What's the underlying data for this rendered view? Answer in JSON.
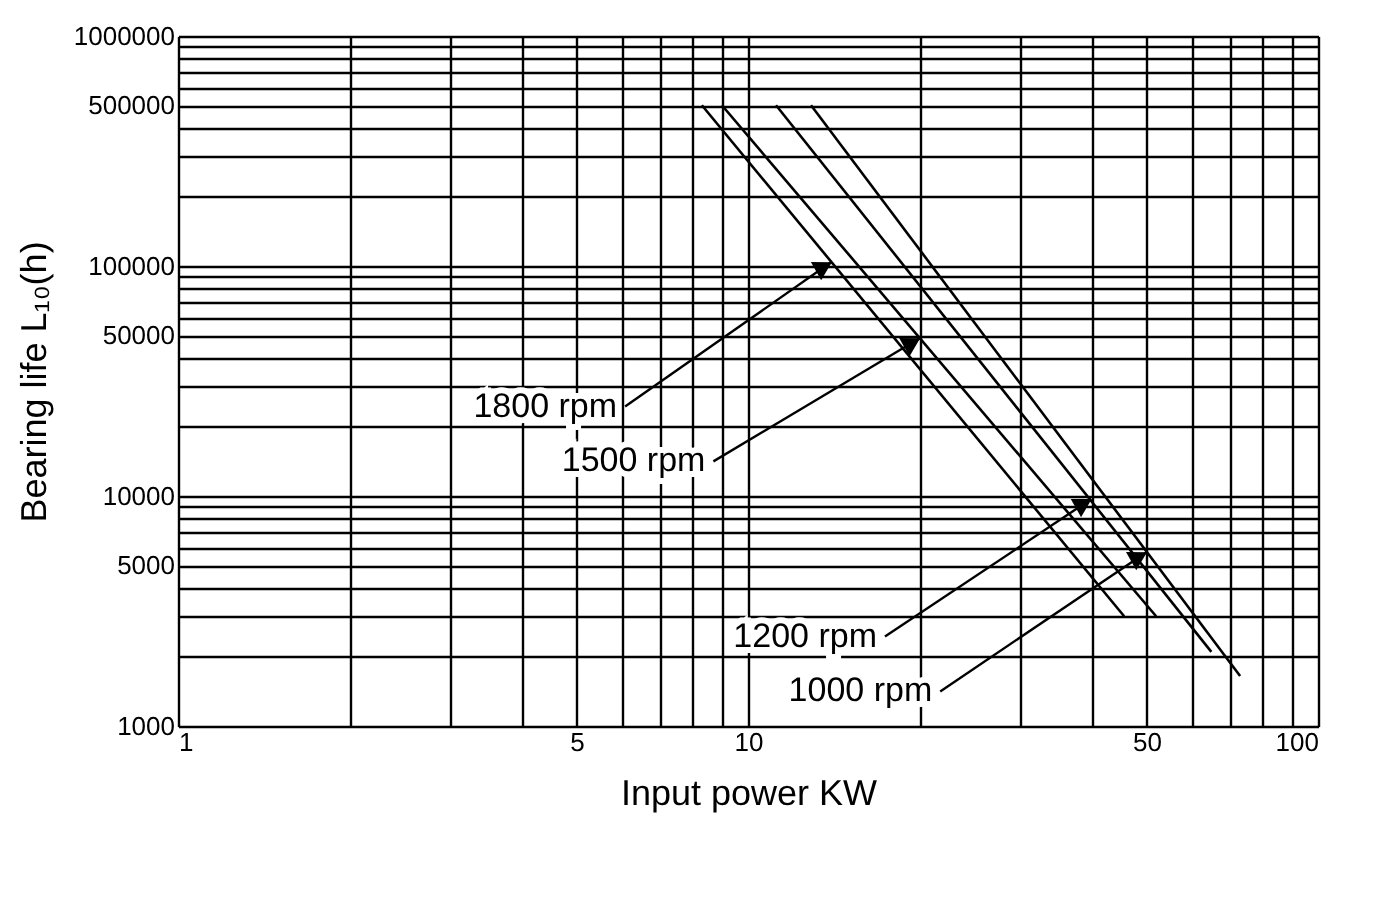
{
  "chart_data": {
    "type": "line",
    "xlabel": "Input power KW",
    "ylabel": "Bearing life L₁₀(h)",
    "log": "xy",
    "grid": true,
    "line_style": "solid",
    "marker": "none",
    "xlim": [
      1,
      100
    ],
    "ylim": [
      1000,
      1000000
    ],
    "xticks": [
      1,
      {
        "value": 2,
        "label": null
      },
      {
        "value": 3,
        "label": null
      },
      {
        "value": 4,
        "label": null
      },
      5,
      {
        "value": 6,
        "label": null
      },
      {
        "value": 7,
        "label": null
      },
      {
        "value": 8,
        "label": null
      },
      {
        "value": 9,
        "label": null
      },
      10,
      {
        "value": 20,
        "label": null
      },
      {
        "value": 30,
        "label": null
      },
      {
        "value": 40,
        "label": null
      },
      50,
      {
        "value": 60,
        "label": null
      },
      {
        "value": 70,
        "label": null
      },
      {
        "value": 80,
        "label": null
      },
      {
        "value": 90,
        "label": null
      },
      100
    ],
    "yticks": [
      1000,
      {
        "value": 2000,
        "label": null
      },
      {
        "value": 3000,
        "label": null
      },
      {
        "value": 4000,
        "label": null
      },
      5000,
      {
        "value": 6000,
        "label": null
      },
      {
        "value": 7000,
        "label": null
      },
      {
        "value": 8000,
        "label": null
      },
      {
        "value": 9000,
        "label": null
      },
      10000,
      {
        "value": 20000,
        "label": null
      },
      {
        "value": 30000,
        "label": null
      },
      {
        "value": 40000,
        "label": null
      },
      50000,
      {
        "value": 60000,
        "label": null
      },
      {
        "value": 70000,
        "label": null
      },
      {
        "value": 80000,
        "label": null
      },
      {
        "value": 90000,
        "label": null
      },
      100000,
      {
        "value": 200000,
        "label": null
      },
      {
        "value": 300000,
        "label": null
      },
      {
        "value": 400000,
        "label": null
      },
      500000,
      {
        "value": 600000,
        "label": null
      },
      {
        "value": 700000,
        "label": null
      },
      {
        "value": 800000,
        "label": null
      },
      {
        "value": 900000,
        "label": null
      },
      1000000
    ],
    "series": [
      {
        "color": "#000000",
        "x": [
          8.3,
          45.7
        ],
        "values": [
          500000,
          3000
        ]
      },
      {
        "color": "#000000",
        "x": [
          9.0,
          52
        ],
        "values": [
          500000,
          3000
        ]
      },
      {
        "color": "#000000",
        "x": [
          11.2,
          65
        ],
        "values": [
          500000,
          2100
        ]
      },
      {
        "color": "#000000",
        "x": [
          12.9,
          73
        ],
        "values": [
          500000,
          1650
        ]
      }
    ],
    "annotations": [
      {
        "text": "1800 rpm",
        "x": 14,
        "y": 104000
      },
      {
        "text": "1500 rpm",
        "x": 20,
        "y": 48500
      },
      {
        "text": "1200 rpm",
        "x": 40,
        "y": 9700
      },
      {
        "text": "1000 rpm",
        "x": 50,
        "y": 5700
      }
    ]
  }
}
